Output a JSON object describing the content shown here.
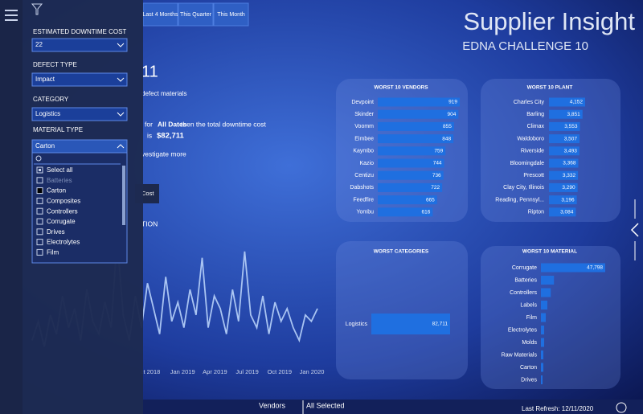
{
  "nav_buttons": [
    "Last 4 Months",
    "This Quarter",
    "This Month"
  ],
  "header": {
    "title": "Supplier Insight",
    "subtitle": "EDNA CHALLENGE 10"
  },
  "filters": [
    {
      "label": "ESTIMATED DOWNTIME COST",
      "value": "22"
    },
    {
      "label": "DEFECT TYPE",
      "value": "Impact"
    },
    {
      "label": "CATEGORY",
      "value": "Logistics"
    },
    {
      "label": "MATERIAL TYPE",
      "value": "Carton"
    }
  ],
  "material_options": [
    "Select all",
    "Batteries",
    "Carton",
    "Composites",
    "Controllers",
    "Corrugate",
    "Drives",
    "Electrolytes",
    "Film"
  ],
  "narrative": [
    "11",
    "defect materials",
    "for",
    "All Dates",
    "then the total downtime cost",
    "is",
    "$82,711",
    "vestigate more",
    "Cost",
    "TION"
  ],
  "chart_data": [
    {
      "type": "line",
      "color": "#a9c4f2",
      "values": [
        20,
        35,
        15,
        40,
        25,
        55,
        30,
        45,
        20,
        60,
        35,
        25,
        50,
        30,
        100,
        40,
        20,
        55,
        30,
        65,
        45,
        25,
        70,
        35,
        50,
        30,
        60,
        40,
        85,
        30,
        55,
        45,
        25,
        60,
        35,
        90,
        40,
        30,
        55,
        25,
        50,
        35,
        45,
        30,
        20,
        40,
        35,
        45
      ],
      "xticks": [
        "ct 2018",
        "Jan 2019",
        "Apr 2019",
        "Jul 2019",
        "Oct 2019",
        "Jan 2020"
      ]
    },
    {
      "type": "bar",
      "title": "WORST 10 VENDORS",
      "color": "#1f6fe0",
      "categories": [
        "Devpoint",
        "Skinder",
        "Voomm",
        "Eimbee",
        "Kaymbo",
        "Kazio",
        "Centizu",
        "Dabshots",
        "Feedfire",
        "Yombu"
      ],
      "values": [
        919,
        904,
        855,
        848,
        759,
        744,
        736,
        722,
        665,
        616
      ]
    },
    {
      "type": "bar",
      "title": "WORST 10 PLANT",
      "color": "#1f6fe0",
      "categories": [
        "Charles City",
        "Barling",
        "Climax",
        "Waldoboro",
        "Riverside",
        "Bloomingdale",
        "Prescott",
        "Clay City, Illinois",
        "Reading, Pennsyl...",
        "Ripton"
      ],
      "values": [
        4152,
        3851,
        3553,
        3507,
        3493,
        3368,
        3332,
        3290,
        3196,
        3084
      ],
      "value_labels": [
        "4,152",
        "3,851",
        "3,553",
        "3,507",
        "3,493",
        "3,368",
        "3,332",
        "3,290",
        "3,196",
        "3,084"
      ]
    },
    {
      "type": "bar",
      "title": "WORST CATEGORIES",
      "color": "#1f6fe0",
      "categories": [
        "Logistics"
      ],
      "values": [
        82711
      ],
      "value_labels": [
        "82,711"
      ]
    },
    {
      "type": "bar",
      "title": "WORST 10 MATERIAL",
      "color": "#1f6fe0",
      "categories": [
        "Corrugate",
        "Batteries",
        "Controllers",
        "Labels",
        "Film",
        "Electrolytes",
        "Molds",
        "Raw Materials",
        "Carton",
        "Drives"
      ],
      "values": [
        47798,
        9700,
        7300,
        4800,
        3600,
        2400,
        2400,
        1800,
        1800,
        1200
      ],
      "value_labels": [
        "47,798",
        null,
        null,
        null,
        null,
        null,
        null,
        null,
        null,
        null
      ]
    }
  ],
  "footer": {
    "slicer_label": "Vendors",
    "slicer_value": "All Selected",
    "refresh": "Last Refresh: 12/11/2020"
  }
}
